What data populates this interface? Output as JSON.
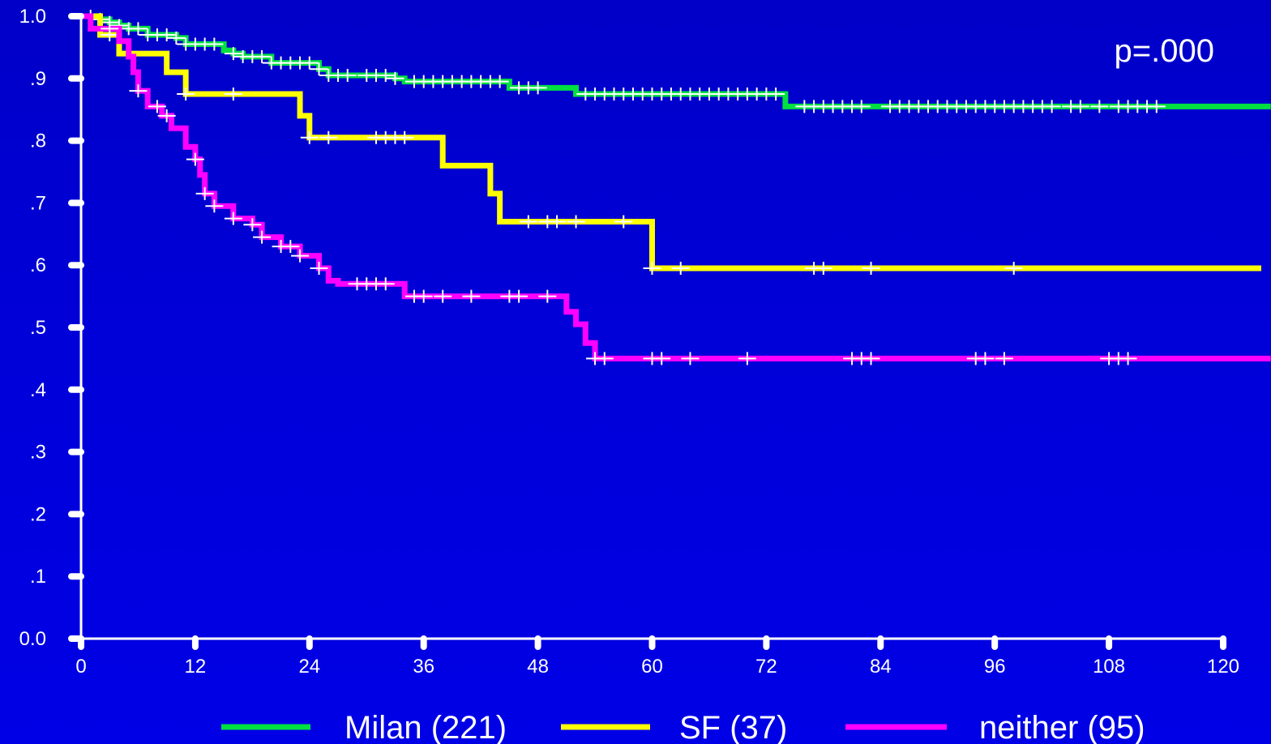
{
  "chart_data": {
    "type": "line",
    "title": "",
    "xlabel": "",
    "ylabel": "",
    "annotation": "p=.000",
    "xlim": [
      0,
      120
    ],
    "ylim": [
      0,
      1.0
    ],
    "x_ticks": [
      "0",
      "12",
      "24",
      "36",
      "48",
      "60",
      "72",
      "84",
      "96",
      "108",
      "120"
    ],
    "x_tick_values": [
      0,
      12,
      24,
      36,
      48,
      60,
      72,
      84,
      96,
      108,
      120
    ],
    "y_ticks": [
      "0.0",
      ".1",
      ".2",
      ".3",
      ".4",
      ".5",
      ".6",
      ".7",
      ".8",
      ".9",
      "1.0"
    ],
    "y_tick_values": [
      0,
      0.1,
      0.2,
      0.3,
      0.4,
      0.5,
      0.6,
      0.7,
      0.8,
      0.9,
      1.0
    ],
    "legend_position": "bottom",
    "series": [
      {
        "name": "Milan (221)",
        "color": "#00e040",
        "steps": [
          [
            0,
            1.0
          ],
          [
            2,
            0.995
          ],
          [
            3,
            0.99
          ],
          [
            4,
            0.985
          ],
          [
            5,
            0.98
          ],
          [
            7,
            0.97
          ],
          [
            10,
            0.965
          ],
          [
            11,
            0.955
          ],
          [
            15,
            0.945
          ],
          [
            16,
            0.94
          ],
          [
            17,
            0.935
          ],
          [
            20,
            0.925
          ],
          [
            25,
            0.915
          ],
          [
            26,
            0.905
          ],
          [
            33,
            0.9
          ],
          [
            34,
            0.895
          ],
          [
            45,
            0.885
          ],
          [
            52,
            0.875
          ],
          [
            74,
            0.855
          ],
          [
            125,
            0.855
          ]
        ],
        "censored": [
          1,
          2,
          3,
          4,
          5,
          6,
          7,
          8,
          9,
          10,
          11,
          12,
          13,
          14,
          16,
          17,
          18,
          19,
          20,
          21,
          22,
          23,
          24,
          25,
          26,
          27,
          28,
          30,
          31,
          32,
          33,
          35,
          36,
          37,
          38,
          39,
          40,
          41,
          42,
          43,
          44,
          46,
          47,
          48,
          53,
          54,
          55,
          56,
          57,
          58,
          59,
          60,
          61,
          62,
          63,
          64,
          65,
          66,
          67,
          68,
          69,
          70,
          71,
          72,
          73,
          76,
          77,
          78,
          79,
          80,
          81,
          82,
          85,
          86,
          87,
          88,
          89,
          90,
          91,
          92,
          93,
          94,
          95,
          96,
          97,
          98,
          99,
          100,
          101,
          102,
          104,
          105,
          107,
          109,
          110,
          111,
          112,
          113
        ]
      },
      {
        "name": "SF (37)",
        "color": "#ffff00",
        "steps": [
          [
            0,
            1.0
          ],
          [
            2,
            0.97
          ],
          [
            4,
            0.94
          ],
          [
            9,
            0.91
          ],
          [
            11,
            0.875
          ],
          [
            23,
            0.84
          ],
          [
            24,
            0.805
          ],
          [
            38,
            0.76
          ],
          [
            43,
            0.715
          ],
          [
            44,
            0.67
          ],
          [
            60,
            0.595
          ],
          [
            124,
            0.595
          ]
        ],
        "censored": [
          3,
          11,
          16,
          24,
          26,
          31,
          32,
          33,
          34,
          47,
          49,
          50,
          52,
          57,
          60,
          63,
          77,
          78,
          83,
          98
        ]
      },
      {
        "name": "neither (95)",
        "color": "#ff00ff",
        "steps": [
          [
            0,
            1.0
          ],
          [
            1,
            0.98
          ],
          [
            4,
            0.96
          ],
          [
            5,
            0.935
          ],
          [
            5.5,
            0.91
          ],
          [
            6,
            0.88
          ],
          [
            7,
            0.855
          ],
          [
            8.5,
            0.84
          ],
          [
            9.5,
            0.82
          ],
          [
            11,
            0.79
          ],
          [
            12,
            0.77
          ],
          [
            12.5,
            0.745
          ],
          [
            13,
            0.715
          ],
          [
            14,
            0.695
          ],
          [
            16,
            0.675
          ],
          [
            18,
            0.665
          ],
          [
            19,
            0.645
          ],
          [
            21,
            0.63
          ],
          [
            23,
            0.615
          ],
          [
            25,
            0.595
          ],
          [
            26,
            0.575
          ],
          [
            27,
            0.57
          ],
          [
            34,
            0.55
          ],
          [
            51,
            0.525
          ],
          [
            52,
            0.505
          ],
          [
            53,
            0.475
          ],
          [
            54,
            0.45
          ],
          [
            125,
            0.45
          ]
        ],
        "censored": [
          3,
          6,
          8,
          9,
          12,
          13,
          14,
          16,
          18,
          19,
          21,
          22,
          23,
          25,
          29,
          30,
          31,
          32,
          35,
          36,
          38,
          41,
          45,
          46,
          49,
          54,
          55,
          60,
          61,
          64,
          70,
          81,
          82,
          83,
          94,
          95,
          97,
          108,
          109,
          110
        ]
      }
    ]
  }
}
